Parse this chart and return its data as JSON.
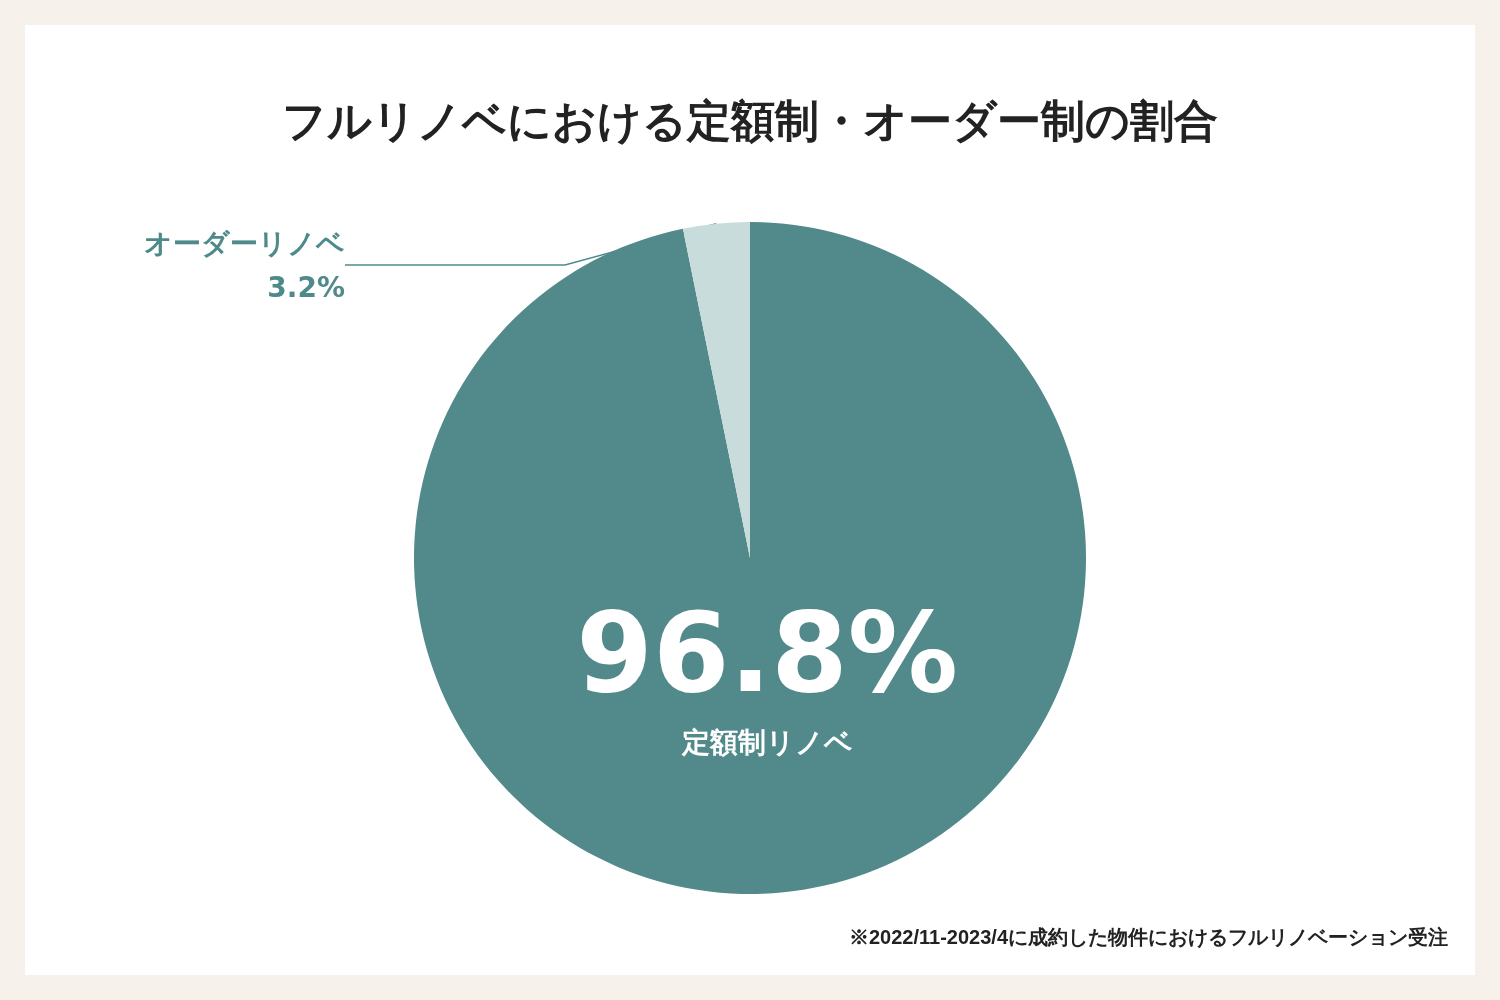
{
  "chart_data": {
    "type": "pie",
    "title": "フルリノベにおける定額制・オーダー制の割合",
    "categories": [
      "定額制リノベ",
      "オーダーリノベ"
    ],
    "values": [
      96.8,
      3.2
    ],
    "colors": [
      "#528a8c",
      "#c8dcdc"
    ],
    "value_labels": [
      "96.8%",
      "3.2%"
    ],
    "annotations": [
      "※2022/11-2023/4に成約した物件におけるフルリノベーション受注"
    ]
  }
}
